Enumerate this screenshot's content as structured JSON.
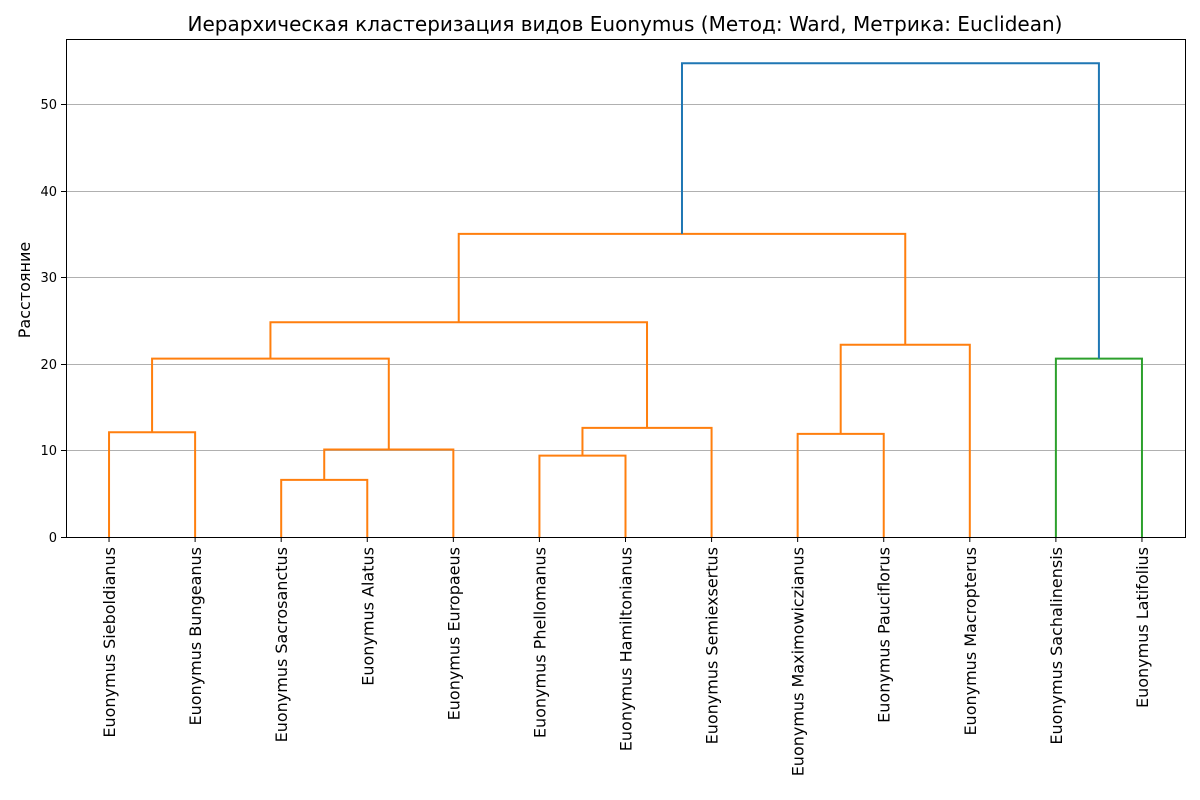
{
  "chart_data": {
    "type": "dendrogram",
    "title": "Иерархическая кластеризация видов Euonymus (Метод: Ward, Метрика: Euclidean)",
    "xlabel": "",
    "ylabel": "Расстояние",
    "ylim": [
      0,
      57.5
    ],
    "yticks": [
      0,
      10,
      20,
      30,
      40,
      50
    ],
    "grid": "y",
    "leaves": [
      "Euonymus Sieboldianus",
      "Euonymus Bungeanus",
      "Euonymus Sacrosanctus",
      "Euonymus Alatus",
      "Euonymus Europaeus",
      "Euonymus Phellomanus",
      "Euonymus Hamiltonianus",
      "Euonymus Semiexsertus",
      "Euonymus Maximowiczianus",
      "Euonymus Pauciflorus",
      "Euonymus Macropterus",
      "Euonymus Sachalinensis",
      "Euonymus Latifolius"
    ],
    "merges": [
      {
        "id": "m1",
        "left": "Euonymus Sacrosanctus",
        "right": "Euonymus Alatus",
        "height": 6.6,
        "color": "#ff7f0e"
      },
      {
        "id": "m2",
        "left": "Euonymus Phellomanus",
        "right": "Euonymus Hamiltonianus",
        "height": 9.4,
        "color": "#ff7f0e"
      },
      {
        "id": "m3",
        "left": "m1",
        "right": "Euonymus Europaeus",
        "height": 10.1,
        "color": "#ff7f0e"
      },
      {
        "id": "m4",
        "left": "Euonymus Maximowiczianus",
        "right": "Euonymus Pauciflorus",
        "height": 11.9,
        "color": "#ff7f0e"
      },
      {
        "id": "m5",
        "left": "Euonymus Sieboldianus",
        "right": "Euonymus Bungeanus",
        "height": 12.1,
        "color": "#ff7f0e"
      },
      {
        "id": "m6",
        "left": "m2",
        "right": "Euonymus Semiexsertus",
        "height": 12.6,
        "color": "#ff7f0e"
      },
      {
        "id": "m7",
        "left": "m5",
        "right": "m3",
        "height": 20.6,
        "color": "#ff7f0e"
      },
      {
        "id": "m8",
        "left": "Euonymus Sachalinensis",
        "right": "Euonymus Latifolius",
        "height": 20.6,
        "color": "#2ca02c"
      },
      {
        "id": "m9",
        "left": "m4",
        "right": "Euonymus Macropterus",
        "height": 22.2,
        "color": "#ff7f0e"
      },
      {
        "id": "m10",
        "left": "m7",
        "right": "m6",
        "height": 24.8,
        "color": "#ff7f0e"
      },
      {
        "id": "m11",
        "left": "m10",
        "right": "m9",
        "height": 35.0,
        "color": "#ff7f0e"
      },
      {
        "id": "m12",
        "left": "m11",
        "right": "m8",
        "height": 54.7,
        "color": "#1f77b4"
      }
    ]
  }
}
